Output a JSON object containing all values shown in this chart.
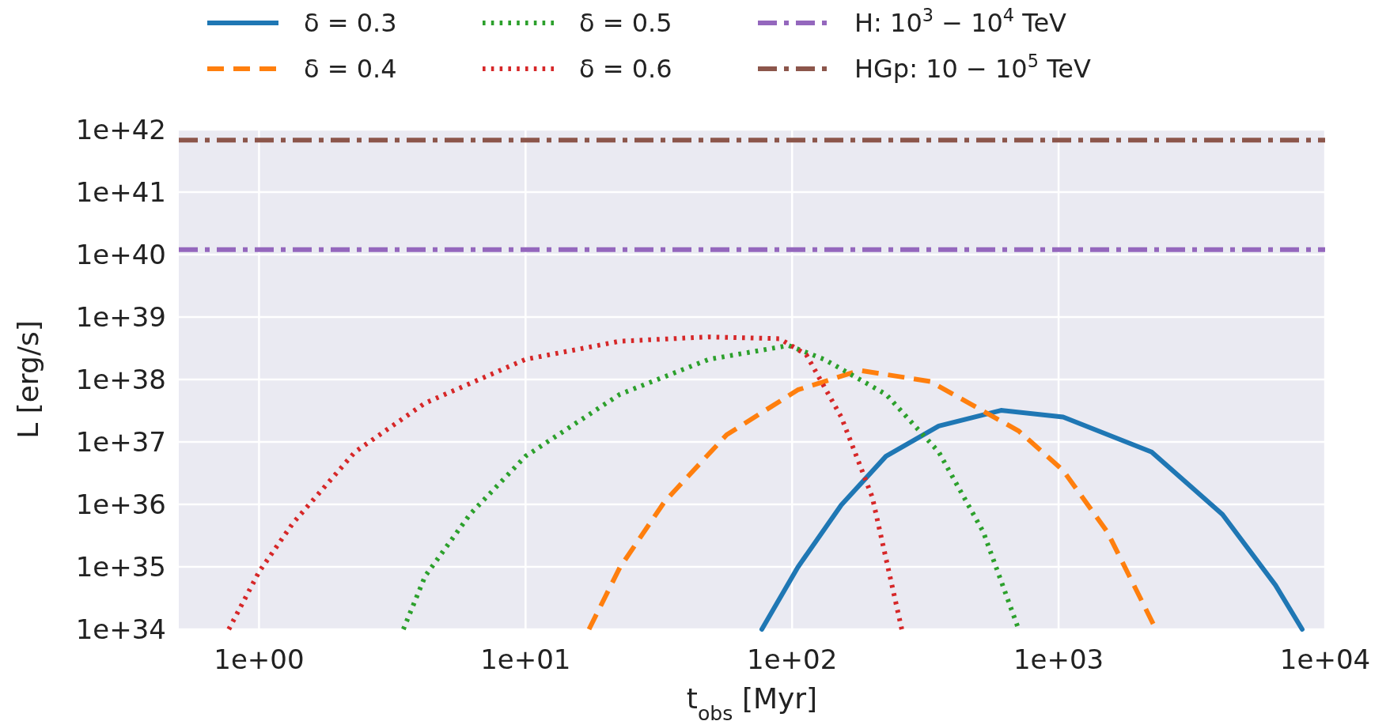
{
  "chart_data": {
    "type": "line",
    "xlabel": "t$_{obs}$ [Myr]",
    "ylabel": "L [erg/s]",
    "log": "xy",
    "grid": true,
    "legend": "top",
    "xlim": [
      0.5,
      10000
    ],
    "ylim": [
      1e+34,
      1e+42
    ],
    "xticks": [
      {
        "value": 1,
        "label": "1e+00"
      },
      {
        "value": 10,
        "label": "1e+01"
      },
      {
        "value": 100,
        "label": "1e+02"
      },
      {
        "value": 1000,
        "label": "1e+03"
      },
      {
        "value": 10000,
        "label": "1e+04"
      }
    ],
    "yticks": [
      {
        "value": 1e+34,
        "label": "1e+34"
      },
      {
        "value": 1e+35,
        "label": "1e+35"
      },
      {
        "value": 1e+36,
        "label": "1e+36"
      },
      {
        "value": 1e+37,
        "label": "1e+37"
      },
      {
        "value": 1e+38,
        "label": "1e+38"
      },
      {
        "value": 1e+39,
        "label": "1e+39"
      },
      {
        "value": 1e+40,
        "label": "1e+40"
      },
      {
        "value": 1e+41,
        "label": "1e+41"
      },
      {
        "value": 1e+42,
        "label": "1e+42"
      }
    ],
    "series": [
      {
        "name": "δ = 0.3",
        "color": "#1f77b4",
        "line_style": "solid",
        "x": [
          77,
          105,
          153,
          225,
          355,
          608,
          1040,
          2234,
          4120,
          6510,
          8200
        ],
        "values": [
          1e+34,
          9.8e+34,
          9.8e+35,
          5.9e+36,
          1.8e+37,
          3.2e+37,
          2.5e+37,
          6.9e+36,
          6.9e+35,
          5.1e+34,
          1e+34
        ]
      },
      {
        "name": "δ = 0.4",
        "color": "#ff7f0e",
        "line_style": "dashed",
        "x": [
          17.3,
          22.6,
          33.2,
          56.8,
          105,
          179,
          330,
          708,
          1040,
          1524,
          2318
        ],
        "values": [
          1e+34,
          9.8e+34,
          1.1e+36,
          1.3e+37,
          6.8e+37,
          1.4e+38,
          9.3e+37,
          1.5e+37,
          3.5e+36,
          3.6e+35,
          1e+34
        ]
      },
      {
        "name": "δ = 0.5",
        "color": "#2ca02c",
        "line_style": "dotted",
        "x": [
          3.48,
          4.2,
          6.18,
          10,
          22.6,
          48.7,
          97,
          132,
          225,
          355,
          522,
          708
        ],
        "values": [
          1e+34,
          7.1e+34,
          6.9e+35,
          5.9e+36,
          5.8e+37,
          2.1e+38,
          3.5e+38,
          2.1e+38,
          5.8e+37,
          6.9e+36,
          3.6e+35,
          1e+34
        ]
      },
      {
        "name": "δ = 0.6",
        "color": "#d62728",
        "line_style": "dotted",
        "x": [
          0.77,
          1,
          1.34,
          2.29,
          4.2,
          10,
          22.6,
          48.7,
          89.8,
          113,
          153,
          200,
          258
        ],
        "values": [
          1e+34,
          8.3e+34,
          5e+35,
          6.9e+36,
          4.2e+37,
          2.1e+38,
          4.1e+38,
          4.8e+38,
          4.5e+38,
          2.5e+38,
          2.5e+37,
          1.3e+36,
          1e+34
        ]
      },
      {
        "name": "H: 10$^{3}$ − 10$^{4}$ TeV",
        "color": "#9467bd",
        "line_style": "dashdot",
        "x": [
          0.5,
          10000
        ],
        "values": [
          1.2e+40,
          1.2e+40
        ]
      },
      {
        "name": "HGp: 10 − 10$^{5}$ TeV",
        "color": "#8c564b",
        "line_style": "dashdot",
        "x": [
          0.5,
          10000
        ],
        "values": [
          6.8e+41,
          6.8e+41
        ]
      }
    ]
  }
}
